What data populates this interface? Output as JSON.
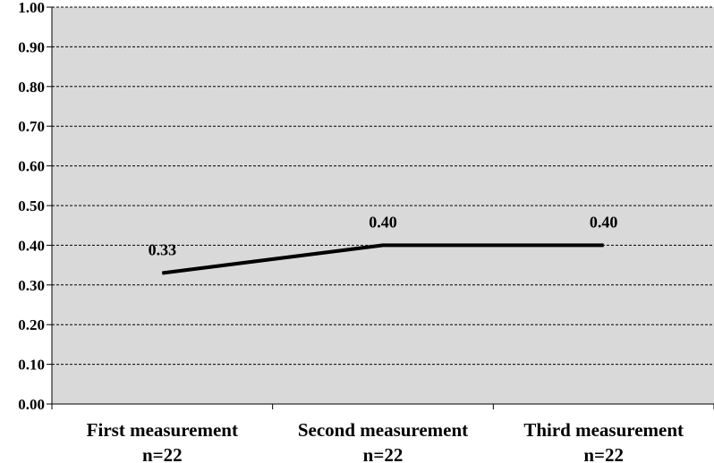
{
  "chart_data": {
    "type": "line",
    "categories": [
      [
        "First measurement",
        "n=22"
      ],
      [
        "Second measurement",
        "n=22"
      ],
      [
        "Third measurement",
        "n=22"
      ]
    ],
    "series": [
      {
        "values": [
          0.33,
          0.4,
          0.4
        ],
        "color": "#000000"
      }
    ],
    "data_labels": [
      "0.33",
      "0.40",
      "0.40"
    ],
    "y_ticks": [
      "0.00",
      "0.10",
      "0.20",
      "0.30",
      "0.40",
      "0.50",
      "0.60",
      "0.70",
      "0.80",
      "0.90",
      "1.00"
    ],
    "ylim": [
      0,
      1
    ],
    "grid": true,
    "plot_background": "#d9d9d9",
    "title": "",
    "xlabel": "",
    "ylabel": ""
  }
}
